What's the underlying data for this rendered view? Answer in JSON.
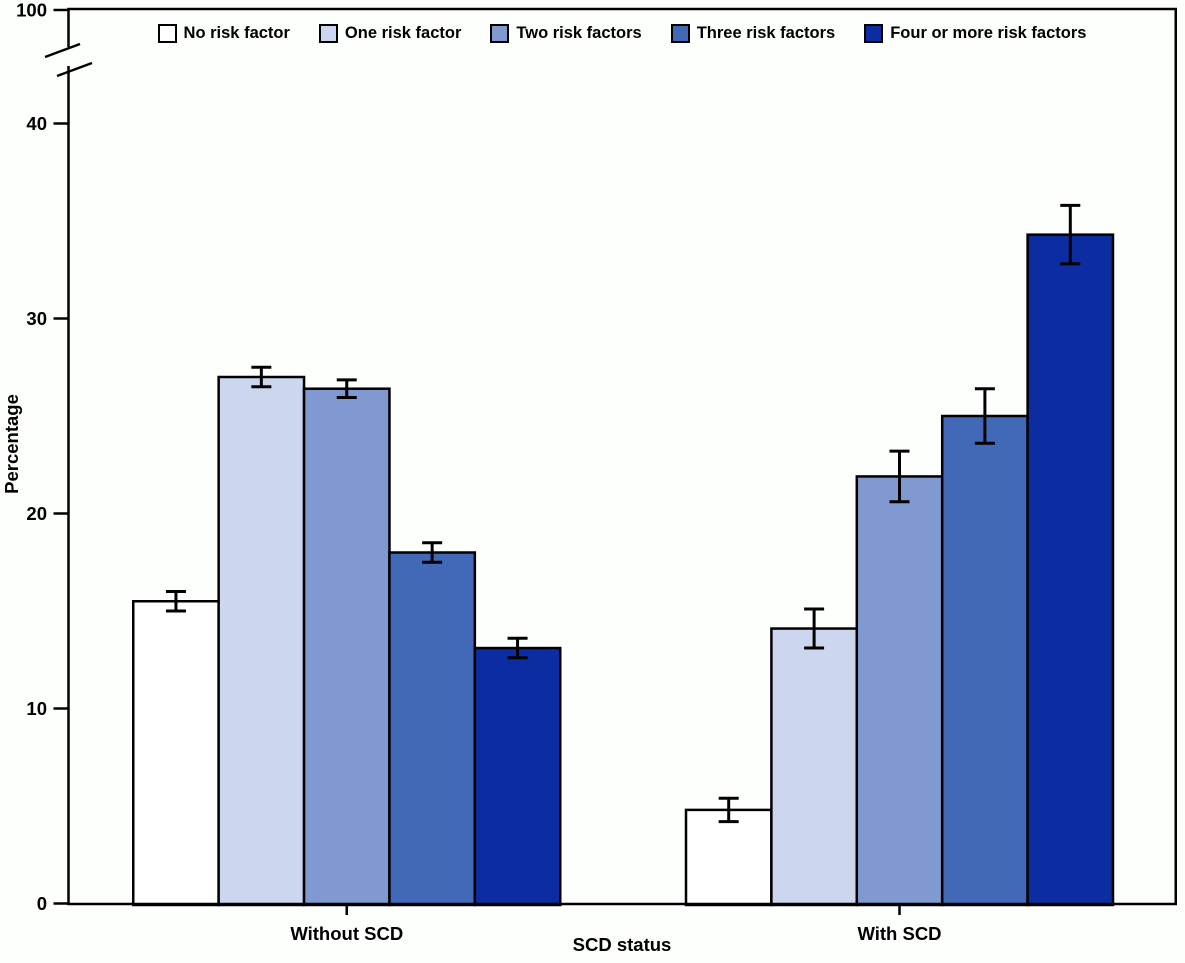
{
  "figure": {
    "background": "#fdfffd",
    "axis_color": "#000000"
  },
  "chart_data": {
    "type": "bar",
    "title": "",
    "xlabel": "SCD status",
    "ylabel": "Percentage",
    "categories": [
      "Without SCD",
      "With SCD"
    ],
    "series": [
      {
        "name": "No risk factor",
        "color": "#ffffff",
        "values": [
          15.5,
          4.8
        ],
        "ci": [
          0.5,
          0.6
        ]
      },
      {
        "name": "One risk factor",
        "color": "#ccd6ee",
        "values": [
          27.0,
          14.1
        ],
        "ci": [
          0.5,
          1.0
        ]
      },
      {
        "name": "Two risk factors",
        "color": "#8099d1",
        "values": [
          26.4,
          21.9
        ],
        "ci": [
          0.45,
          1.3
        ]
      },
      {
        "name": "Three risk factors",
        "color": "#4169b8",
        "values": [
          18.0,
          25.0
        ],
        "ci": [
          0.5,
          1.4
        ]
      },
      {
        "name": "Four or more risk factors",
        "color": "#0b2da1",
        "values": [
          13.1,
          34.3
        ],
        "ci": [
          0.5,
          1.5
        ]
      }
    ],
    "y_ticks": [
      0,
      10,
      20,
      30,
      40
    ],
    "y_break_top_label": "100",
    "axis_break": true,
    "ylim_display": [
      0,
      45
    ],
    "error_bars": true,
    "grid": false,
    "legend_position": "top"
  }
}
